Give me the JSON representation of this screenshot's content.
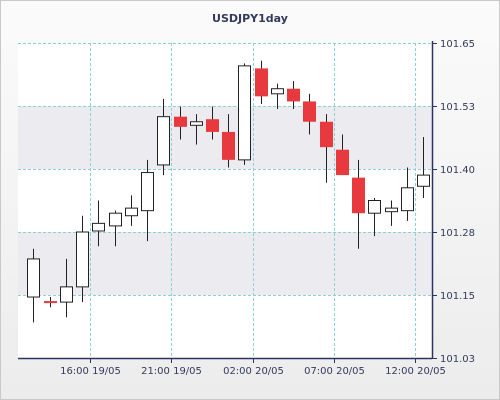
{
  "chart_data": {
    "type": "candlestick",
    "title": "USDJPY1day",
    "xlabel": "",
    "ylabel": "",
    "ylim": [
      101.03,
      101.65
    ],
    "grid": true,
    "y_ticks": [
      "101.03",
      "101.15",
      "101.28",
      "101.40",
      "101.53",
      "101.65"
    ],
    "x_ticks": [
      {
        "label": "16:00 19/05",
        "index": 3.5
      },
      {
        "label": "21:00 19/05",
        "index": 8.5
      },
      {
        "label": "02:00 20/05",
        "index": 13.5
      },
      {
        "label": "07:00 20/05",
        "index": 18.5
      },
      {
        "label": "12:00 20/05",
        "index": 23.5
      }
    ],
    "candles": [
      {
        "open": 101.15,
        "high": 101.245,
        "low": 101.1,
        "close": 101.225
      },
      {
        "open": 101.142,
        "high": 101.15,
        "low": 101.13,
        "close": 101.14
      },
      {
        "open": 101.14,
        "high": 101.225,
        "low": 101.11,
        "close": 101.17
      },
      {
        "open": 101.17,
        "high": 101.31,
        "low": 101.14,
        "close": 101.278
      },
      {
        "open": 101.28,
        "high": 101.34,
        "low": 101.25,
        "close": 101.295
      },
      {
        "open": 101.29,
        "high": 101.32,
        "low": 101.25,
        "close": 101.315
      },
      {
        "open": 101.31,
        "high": 101.35,
        "low": 101.29,
        "close": 101.325
      },
      {
        "open": 101.32,
        "high": 101.42,
        "low": 101.26,
        "close": 101.395
      },
      {
        "open": 101.41,
        "high": 101.54,
        "low": 101.39,
        "close": 101.505
      },
      {
        "open": 101.505,
        "high": 101.525,
        "low": 101.46,
        "close": 101.485
      },
      {
        "open": 101.488,
        "high": 101.51,
        "low": 101.45,
        "close": 101.495
      },
      {
        "open": 101.5,
        "high": 101.525,
        "low": 101.46,
        "close": 101.475
      },
      {
        "open": 101.475,
        "high": 101.51,
        "low": 101.405,
        "close": 101.42
      },
      {
        "open": 101.42,
        "high": 101.61,
        "low": 101.41,
        "close": 101.605
      },
      {
        "open": 101.6,
        "high": 101.615,
        "low": 101.53,
        "close": 101.545
      },
      {
        "open": 101.55,
        "high": 101.57,
        "low": 101.52,
        "close": 101.56
      },
      {
        "open": 101.56,
        "high": 101.575,
        "low": 101.52,
        "close": 101.535
      },
      {
        "open": 101.535,
        "high": 101.55,
        "low": 101.47,
        "close": 101.495
      },
      {
        "open": 101.495,
        "high": 101.51,
        "low": 101.375,
        "close": 101.445
      },
      {
        "open": 101.44,
        "high": 101.47,
        "low": 101.39,
        "close": 101.39
      },
      {
        "open": 101.385,
        "high": 101.42,
        "low": 101.245,
        "close": 101.315
      },
      {
        "open": 101.315,
        "high": 101.345,
        "low": 101.27,
        "close": 101.34
      },
      {
        "open": 101.318,
        "high": 101.34,
        "low": 101.29,
        "close": 101.325
      },
      {
        "open": 101.32,
        "high": 101.405,
        "low": 101.3,
        "close": 101.365
      },
      {
        "open": 101.368,
        "high": 101.465,
        "low": 101.345,
        "close": 101.39
      }
    ],
    "colors": {
      "up_fill": "#ffffff",
      "down_fill": "#e8393e",
      "candle_outline": "#222222",
      "grid": "#8fd0d6",
      "axis": "#2b3460",
      "plot_bg": "#ffffff",
      "outer_bg_top": "#fbfbfb",
      "outer_bg_bottom": "#ececec",
      "band": "#ececf0",
      "frame": "#c9c9c9",
      "text": "#333b5c"
    }
  }
}
